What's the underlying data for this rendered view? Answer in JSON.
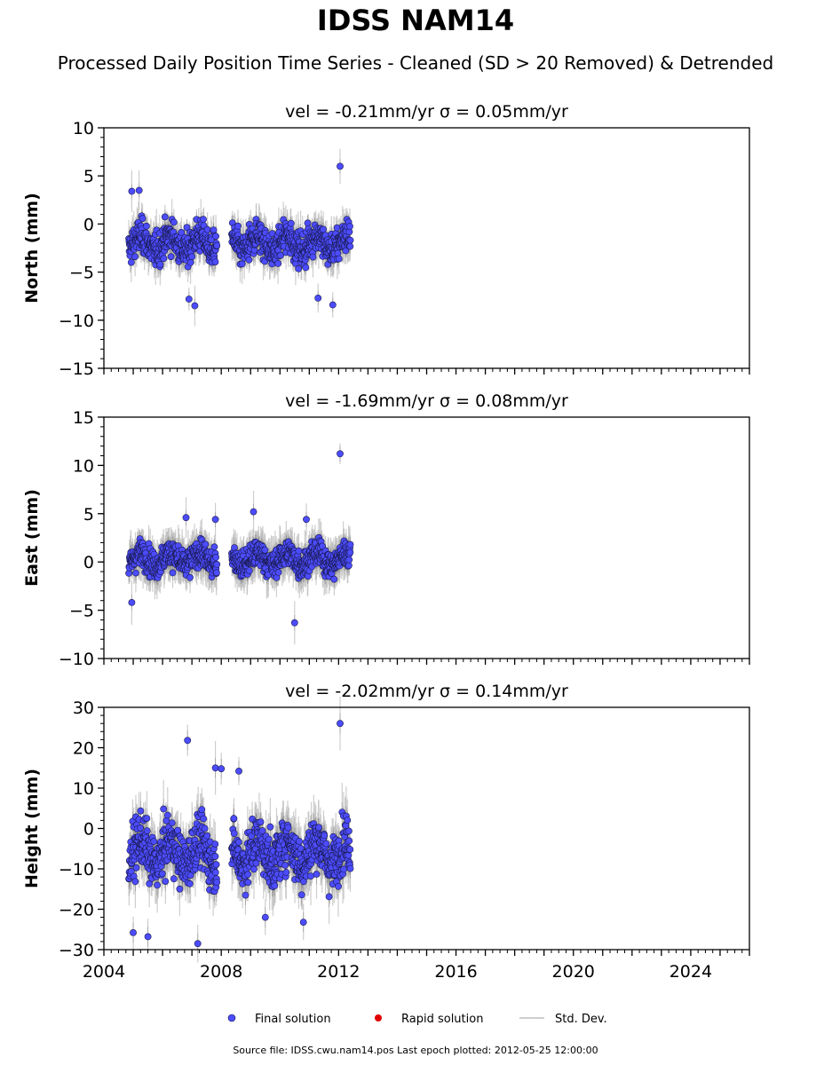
{
  "title": "IDSS NAM14",
  "subtitle": "Processed Daily Position Time Series - Cleaned (SD > 20 Removed) & Detrended",
  "legend": {
    "final": "Final solution",
    "rapid": "Rapid solution",
    "std": "Std. Dev."
  },
  "footer": "Source file: IDSS.cwu.nam14.pos  Last epoch plotted: 2012-05-25 12:00:00",
  "colors": {
    "final": "#4c4cff",
    "final_edge": "#1a1a4d",
    "rapid": "#e00000",
    "std": "#bdbdbd",
    "axis": "#000000"
  },
  "chart_data": [
    {
      "type": "scatter",
      "panel_title": "vel = -0.21mm/yr   σ = 0.05mm/yr",
      "ylabel": "North (mm)",
      "xlim": [
        2004.0,
        2026.0
      ],
      "ylim": [
        -15,
        10
      ],
      "yticks": [
        -15,
        -10,
        -5,
        0,
        5,
        10
      ],
      "ytick_labels": [
        "−15",
        "−10",
        "−5",
        "0",
        "5",
        "10"
      ],
      "data_span": [
        2004.85,
        2012.4
      ],
      "baseline": -2.0,
      "spread": 1.6,
      "std": 1.5,
      "outliers": [
        [
          2012.05,
          6.0
        ],
        [
          2011.8,
          -8.4
        ],
        [
          2005.2,
          3.5
        ],
        [
          2004.95,
          3.4
        ],
        [
          2011.3,
          -7.7
        ],
        [
          2006.9,
          -7.8
        ],
        [
          2007.1,
          -8.5
        ]
      ]
    },
    {
      "type": "scatter",
      "panel_title": "vel = -1.69mm/yr   σ = 0.08mm/yr",
      "ylabel": "East (mm)",
      "xlim": [
        2004.0,
        2026.0
      ],
      "ylim": [
        -10,
        15
      ],
      "yticks": [
        -10,
        -5,
        0,
        5,
        10,
        15
      ],
      "ytick_labels": [
        "−10",
        "−5",
        "0",
        "5",
        "10",
        "15"
      ],
      "data_span": [
        2004.85,
        2012.4
      ],
      "baseline": 0.3,
      "spread": 1.3,
      "std": 1.6,
      "outliers": [
        [
          2012.05,
          11.2
        ],
        [
          2010.5,
          -6.3
        ],
        [
          2009.1,
          5.2
        ],
        [
          2006.8,
          4.6
        ],
        [
          2007.8,
          4.4
        ],
        [
          2010.9,
          4.4
        ],
        [
          2004.95,
          -4.2
        ]
      ]
    },
    {
      "type": "scatter",
      "panel_title": "vel = -2.02mm/yr   σ = 0.14mm/yr",
      "ylabel": "Height (mm)",
      "xlim": [
        2004.0,
        2026.0
      ],
      "ylim": [
        -30,
        30
      ],
      "yticks": [
        -30,
        -20,
        -10,
        0,
        10,
        20,
        30
      ],
      "ytick_labels": [
        "−30",
        "−20",
        "−10",
        "0",
        "10",
        "20",
        "30"
      ],
      "xticks": [
        2004,
        2008,
        2012,
        2016,
        2020,
        2024
      ],
      "xtick_labels": [
        "2004",
        "2008",
        "2012",
        "2016",
        "2020",
        "2024"
      ],
      "data_span": [
        2004.85,
        2012.4
      ],
      "baseline": -6.0,
      "spread": 6.0,
      "std": 5.0,
      "outliers": [
        [
          2012.05,
          26.0
        ],
        [
          2006.85,
          21.8
        ],
        [
          2007.8,
          15.0
        ],
        [
          2008.0,
          14.8
        ],
        [
          2008.6,
          14.2
        ],
        [
          2007.2,
          -28.5
        ],
        [
          2005.5,
          -26.8
        ],
        [
          2005.0,
          -25.8
        ],
        [
          2010.8,
          -23.2
        ],
        [
          2009.5,
          -22.0
        ]
      ]
    }
  ]
}
